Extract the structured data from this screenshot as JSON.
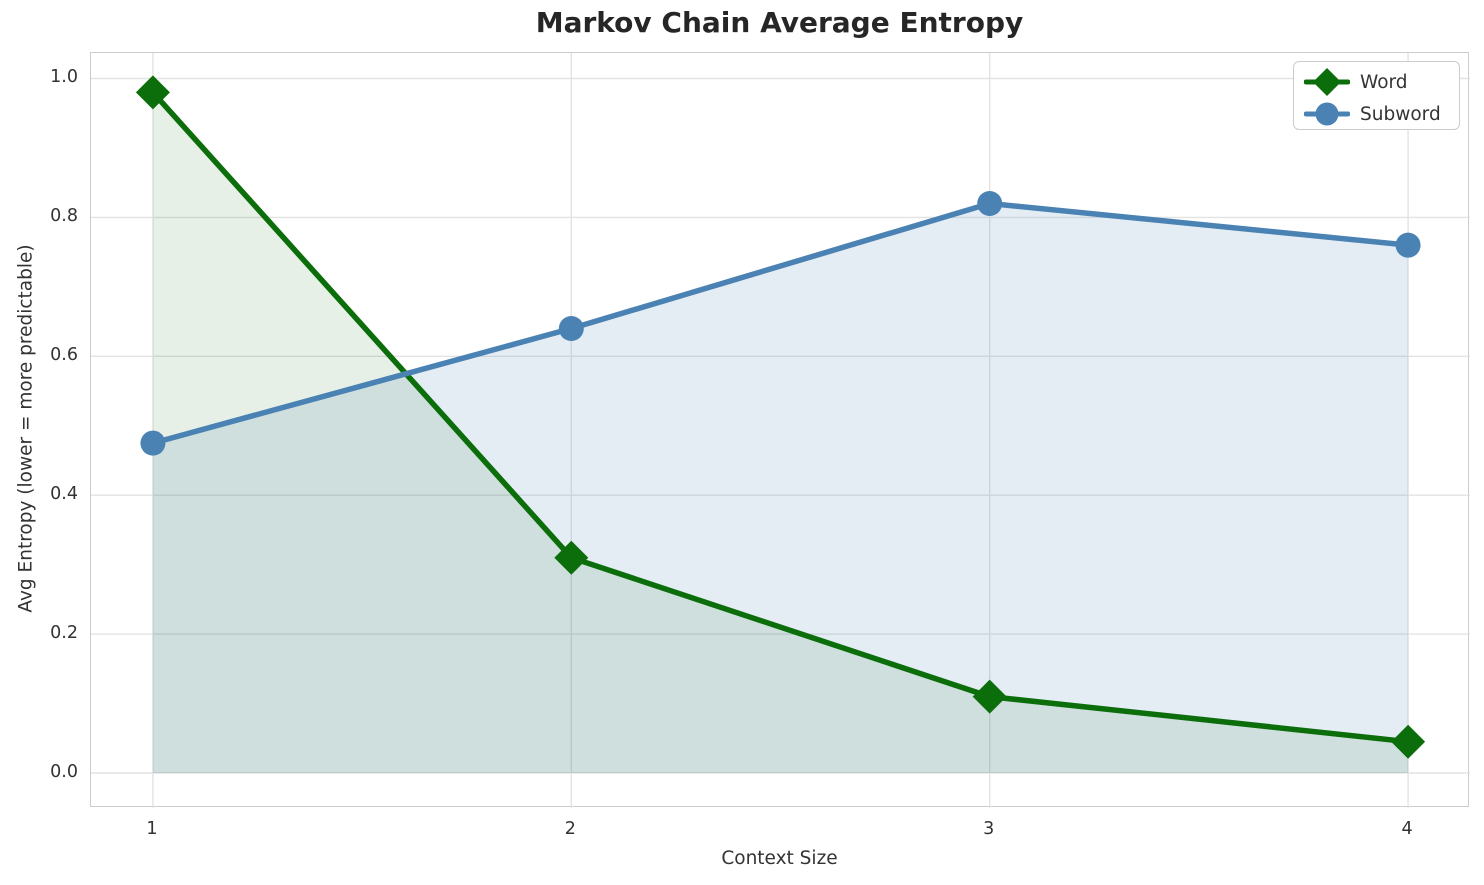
{
  "chart_data": {
    "type": "line",
    "title": "Markov Chain Average Entropy",
    "xlabel": "Context Size",
    "ylabel": "Avg Entropy (lower = more predictable)",
    "x": [
      1,
      2,
      3,
      4
    ],
    "xtick_labels": [
      "1",
      "2",
      "3",
      "4"
    ],
    "ytick_values": [
      0.0,
      0.2,
      0.4,
      0.6,
      0.8,
      1.0
    ],
    "ytick_labels": [
      "0.0",
      "0.2",
      "0.4",
      "0.6",
      "0.8",
      "1.0"
    ],
    "xlim": [
      0.852,
      4.148
    ],
    "ylim": [
      -0.0504,
      1.0367
    ],
    "grid": true,
    "grid_color": "#e3e3e3",
    "legend_position": "upper right",
    "series": [
      {
        "name": "Word",
        "marker": "diamond",
        "color": "#0b6e0b",
        "fill_opacity": 0.1,
        "values": [
          0.98,
          0.31,
          0.11,
          0.045
        ]
      },
      {
        "name": "Subword",
        "marker": "circle",
        "color": "#4a82b4",
        "fill_opacity": 0.15,
        "values": [
          0.475,
          0.64,
          0.82,
          0.76
        ]
      }
    ]
  }
}
